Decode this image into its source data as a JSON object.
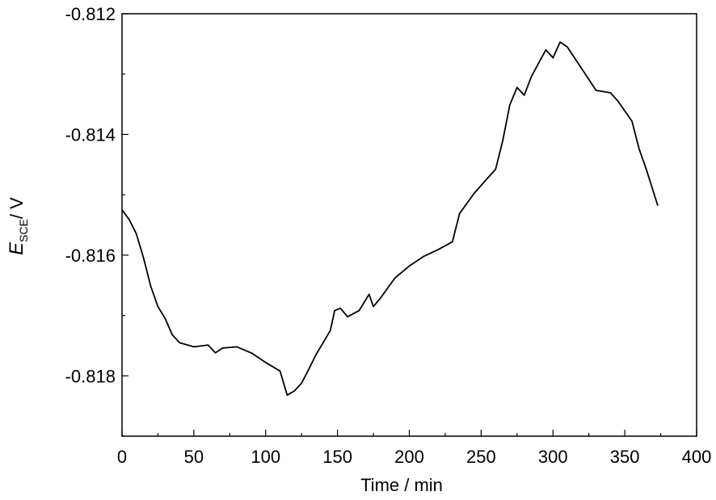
{
  "chart_data": {
    "type": "line",
    "xlabel": "Time / min",
    "ylabel": {
      "symbol": "E",
      "subscript": "SCE",
      "unit": "/ V"
    },
    "xlim": [
      0,
      400
    ],
    "xticks": [
      0,
      50,
      100,
      150,
      200,
      250,
      300,
      350,
      400
    ],
    "ylim": [
      -0.819,
      -0.812
    ],
    "yticks": [
      -0.818,
      -0.816,
      -0.814,
      -0.812
    ],
    "grid": false,
    "series": [
      {
        "color": "#000000",
        "x": [
          0,
          5,
          10,
          15,
          20,
          25,
          30,
          35,
          40,
          50,
          60,
          65,
          70,
          80,
          90,
          100,
          110,
          115,
          120,
          125,
          130,
          135,
          140,
          145,
          148,
          152,
          157,
          165,
          172,
          175,
          180,
          190,
          200,
          210,
          220,
          230,
          235,
          245,
          255,
          260,
          265,
          270,
          275,
          280,
          285,
          295,
          300,
          305,
          310,
          320,
          330,
          340,
          345,
          355,
          360,
          365,
          373
        ],
        "values": [
          -0.81525,
          -0.81541,
          -0.81565,
          -0.81605,
          -0.81652,
          -0.81685,
          -0.81705,
          -0.81732,
          -0.81745,
          -0.81752,
          -0.81749,
          -0.81762,
          -0.81754,
          -0.81752,
          -0.81762,
          -0.81778,
          -0.81792,
          -0.81832,
          -0.81825,
          -0.81812,
          -0.81789,
          -0.81765,
          -0.81745,
          -0.81725,
          -0.81692,
          -0.81688,
          -0.81702,
          -0.81692,
          -0.81665,
          -0.81685,
          -0.81671,
          -0.81638,
          -0.81618,
          -0.81602,
          -0.81591,
          -0.81578,
          -0.81531,
          -0.81498,
          -0.81471,
          -0.81458,
          -0.81411,
          -0.81351,
          -0.81322,
          -0.81335,
          -0.81304,
          -0.8126,
          -0.81273,
          -0.81247,
          -0.81255,
          -0.81291,
          -0.81327,
          -0.81331,
          -0.81344,
          -0.81378,
          -0.81424,
          -0.81458,
          -0.81518
        ]
      }
    ]
  }
}
